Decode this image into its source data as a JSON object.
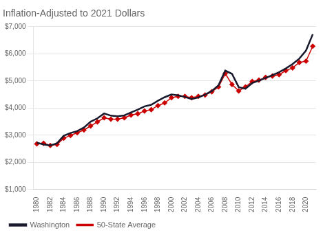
{
  "chart_data": {
    "type": "line",
    "title": "Inflation-Adjusted to 2021 Dollars",
    "x": [
      1980,
      1981,
      1982,
      1983,
      1984,
      1985,
      1986,
      1987,
      1988,
      1989,
      1990,
      1991,
      1992,
      1993,
      1994,
      1995,
      1996,
      1997,
      1998,
      1999,
      2000,
      2001,
      2002,
      2003,
      2004,
      2005,
      2006,
      2007,
      2008,
      2009,
      2010,
      2011,
      2012,
      2013,
      2014,
      2015,
      2016,
      2017,
      2018,
      2019,
      2020,
      2021
    ],
    "series": [
      {
        "name": "Washington",
        "color": "#1a1a2e",
        "marker": "none",
        "line_style": "solid",
        "values": [
          2720,
          2660,
          2620,
          2700,
          2980,
          3080,
          3150,
          3280,
          3500,
          3620,
          3800,
          3720,
          3700,
          3730,
          3840,
          3940,
          4060,
          4120,
          4270,
          4400,
          4500,
          4470,
          4410,
          4330,
          4390,
          4490,
          4630,
          4840,
          5380,
          5260,
          4770,
          4710,
          4920,
          5010,
          5110,
          5210,
          5320,
          5460,
          5620,
          5820,
          6120,
          6720
        ]
      },
      {
        "name": "50-State Average",
        "color": "#cc0000",
        "marker": "diamond",
        "line_style": "solid",
        "values": [
          2680,
          2700,
          2620,
          2660,
          2890,
          2990,
          3090,
          3190,
          3340,
          3490,
          3640,
          3590,
          3590,
          3640,
          3740,
          3790,
          3890,
          3940,
          4090,
          4190,
          4380,
          4430,
          4430,
          4380,
          4430,
          4480,
          4600,
          4780,
          5270,
          4870,
          4630,
          4780,
          4980,
          5030,
          5130,
          5180,
          5230,
          5380,
          5480,
          5680,
          5730,
          6280
        ]
      }
    ],
    "xlim": [
      1979.5,
      2021.5
    ],
    "xticks": [
      1980,
      1982,
      1984,
      1986,
      1988,
      1990,
      1992,
      1994,
      1996,
      1998,
      2000,
      2002,
      2004,
      2006,
      2008,
      2010,
      2012,
      2014,
      2016,
      2018,
      2020
    ],
    "ylim": [
      1000,
      7000
    ],
    "yticks": [
      {
        "value": 1000,
        "label": "$1,000"
      },
      {
        "value": 2000,
        "label": "$2,000"
      },
      {
        "value": 3000,
        "label": "$3,000"
      },
      {
        "value": 4000,
        "label": "$4,000"
      },
      {
        "value": 5000,
        "label": "$5,000"
      },
      {
        "value": 6000,
        "label": "$6,000"
      },
      {
        "value": 7000,
        "label": "$7,000"
      }
    ],
    "grid": "y",
    "legend": "lower left"
  }
}
